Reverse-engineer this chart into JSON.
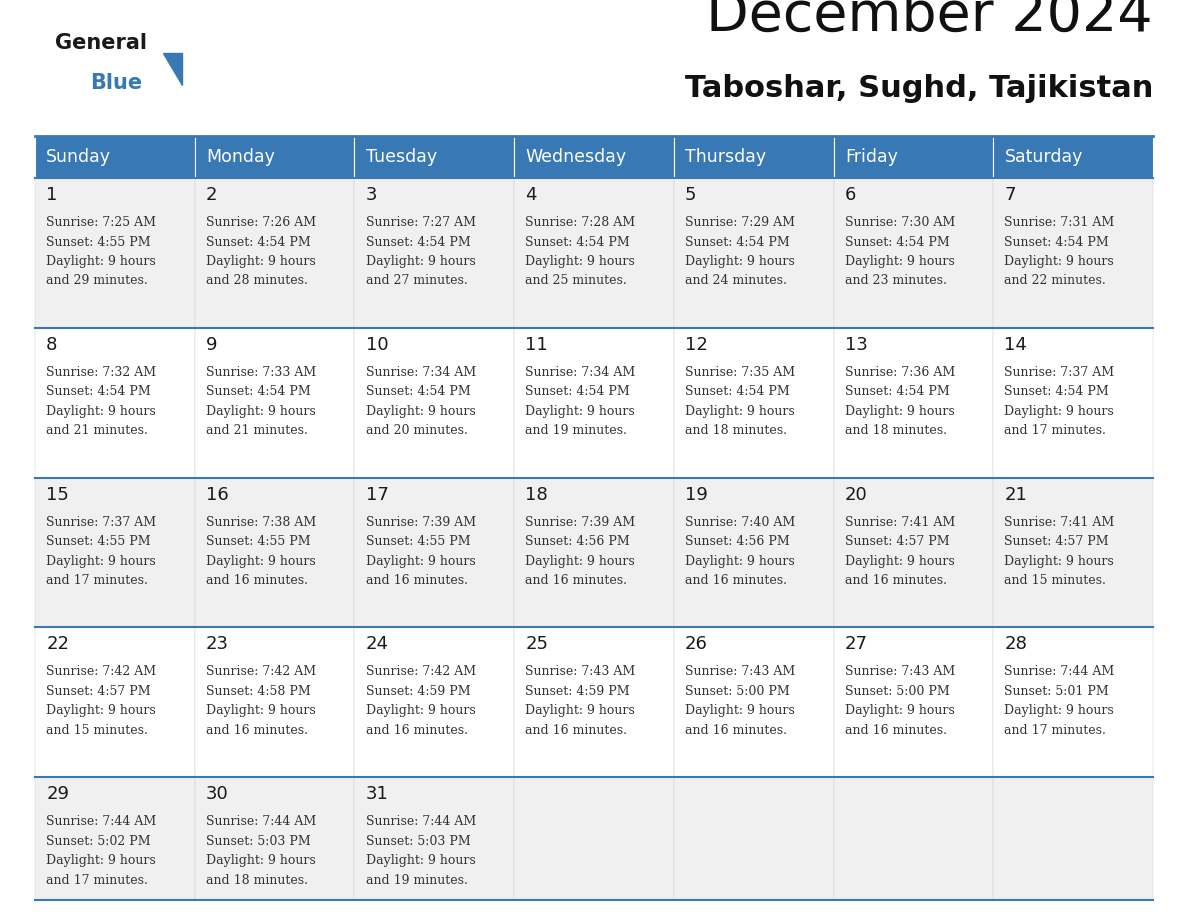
{
  "title": "December 2024",
  "subtitle": "Taboshar, Sughd, Tajikistan",
  "header_bg_color": "#3778b5",
  "header_text_color": "#ffffff",
  "bg_color_odd": "#f0f0f0",
  "bg_color_even": "#ffffff",
  "border_color": "#3778b5",
  "text_color": "#333333",
  "days_of_week": [
    "Sunday",
    "Monday",
    "Tuesday",
    "Wednesday",
    "Thursday",
    "Friday",
    "Saturday"
  ],
  "logo_general_color": "#1a1a1a",
  "logo_blue_color": "#3778b5",
  "logo_triangle_color": "#3778b5",
  "weeks": [
    [
      {
        "day": "1",
        "sunrise": "7:25 AM",
        "sunset": "4:55 PM",
        "daylight_h": "9 hours",
        "daylight_m": "and 29 minutes."
      },
      {
        "day": "2",
        "sunrise": "7:26 AM",
        "sunset": "4:54 PM",
        "daylight_h": "9 hours",
        "daylight_m": "and 28 minutes."
      },
      {
        "day": "3",
        "sunrise": "7:27 AM",
        "sunset": "4:54 PM",
        "daylight_h": "9 hours",
        "daylight_m": "and 27 minutes."
      },
      {
        "day": "4",
        "sunrise": "7:28 AM",
        "sunset": "4:54 PM",
        "daylight_h": "9 hours",
        "daylight_m": "and 25 minutes."
      },
      {
        "day": "5",
        "sunrise": "7:29 AM",
        "sunset": "4:54 PM",
        "daylight_h": "9 hours",
        "daylight_m": "and 24 minutes."
      },
      {
        "day": "6",
        "sunrise": "7:30 AM",
        "sunset": "4:54 PM",
        "daylight_h": "9 hours",
        "daylight_m": "and 23 minutes."
      },
      {
        "day": "7",
        "sunrise": "7:31 AM",
        "sunset": "4:54 PM",
        "daylight_h": "9 hours",
        "daylight_m": "and 22 minutes."
      }
    ],
    [
      {
        "day": "8",
        "sunrise": "7:32 AM",
        "sunset": "4:54 PM",
        "daylight_h": "9 hours",
        "daylight_m": "and 21 minutes."
      },
      {
        "day": "9",
        "sunrise": "7:33 AM",
        "sunset": "4:54 PM",
        "daylight_h": "9 hours",
        "daylight_m": "and 21 minutes."
      },
      {
        "day": "10",
        "sunrise": "7:34 AM",
        "sunset": "4:54 PM",
        "daylight_h": "9 hours",
        "daylight_m": "and 20 minutes."
      },
      {
        "day": "11",
        "sunrise": "7:34 AM",
        "sunset": "4:54 PM",
        "daylight_h": "9 hours",
        "daylight_m": "and 19 minutes."
      },
      {
        "day": "12",
        "sunrise": "7:35 AM",
        "sunset": "4:54 PM",
        "daylight_h": "9 hours",
        "daylight_m": "and 18 minutes."
      },
      {
        "day": "13",
        "sunrise": "7:36 AM",
        "sunset": "4:54 PM",
        "daylight_h": "9 hours",
        "daylight_m": "and 18 minutes."
      },
      {
        "day": "14",
        "sunrise": "7:37 AM",
        "sunset": "4:54 PM",
        "daylight_h": "9 hours",
        "daylight_m": "and 17 minutes."
      }
    ],
    [
      {
        "day": "15",
        "sunrise": "7:37 AM",
        "sunset": "4:55 PM",
        "daylight_h": "9 hours",
        "daylight_m": "and 17 minutes."
      },
      {
        "day": "16",
        "sunrise": "7:38 AM",
        "sunset": "4:55 PM",
        "daylight_h": "9 hours",
        "daylight_m": "and 16 minutes."
      },
      {
        "day": "17",
        "sunrise": "7:39 AM",
        "sunset": "4:55 PM",
        "daylight_h": "9 hours",
        "daylight_m": "and 16 minutes."
      },
      {
        "day": "18",
        "sunrise": "7:39 AM",
        "sunset": "4:56 PM",
        "daylight_h": "9 hours",
        "daylight_m": "and 16 minutes."
      },
      {
        "day": "19",
        "sunrise": "7:40 AM",
        "sunset": "4:56 PM",
        "daylight_h": "9 hours",
        "daylight_m": "and 16 minutes."
      },
      {
        "day": "20",
        "sunrise": "7:41 AM",
        "sunset": "4:57 PM",
        "daylight_h": "9 hours",
        "daylight_m": "and 16 minutes."
      },
      {
        "day": "21",
        "sunrise": "7:41 AM",
        "sunset": "4:57 PM",
        "daylight_h": "9 hours",
        "daylight_m": "and 15 minutes."
      }
    ],
    [
      {
        "day": "22",
        "sunrise": "7:42 AM",
        "sunset": "4:57 PM",
        "daylight_h": "9 hours",
        "daylight_m": "and 15 minutes."
      },
      {
        "day": "23",
        "sunrise": "7:42 AM",
        "sunset": "4:58 PM",
        "daylight_h": "9 hours",
        "daylight_m": "and 16 minutes."
      },
      {
        "day": "24",
        "sunrise": "7:42 AM",
        "sunset": "4:59 PM",
        "daylight_h": "9 hours",
        "daylight_m": "and 16 minutes."
      },
      {
        "day": "25",
        "sunrise": "7:43 AM",
        "sunset": "4:59 PM",
        "daylight_h": "9 hours",
        "daylight_m": "and 16 minutes."
      },
      {
        "day": "26",
        "sunrise": "7:43 AM",
        "sunset": "5:00 PM",
        "daylight_h": "9 hours",
        "daylight_m": "and 16 minutes."
      },
      {
        "day": "27",
        "sunrise": "7:43 AM",
        "sunset": "5:00 PM",
        "daylight_h": "9 hours",
        "daylight_m": "and 16 minutes."
      },
      {
        "day": "28",
        "sunrise": "7:44 AM",
        "sunset": "5:01 PM",
        "daylight_h": "9 hours",
        "daylight_m": "and 17 minutes."
      }
    ],
    [
      {
        "day": "29",
        "sunrise": "7:44 AM",
        "sunset": "5:02 PM",
        "daylight_h": "9 hours",
        "daylight_m": "and 17 minutes."
      },
      {
        "day": "30",
        "sunrise": "7:44 AM",
        "sunset": "5:03 PM",
        "daylight_h": "9 hours",
        "daylight_m": "and 18 minutes."
      },
      {
        "day": "31",
        "sunrise": "7:44 AM",
        "sunset": "5:03 PM",
        "daylight_h": "9 hours",
        "daylight_m": "and 19 minutes."
      },
      null,
      null,
      null,
      null
    ]
  ]
}
